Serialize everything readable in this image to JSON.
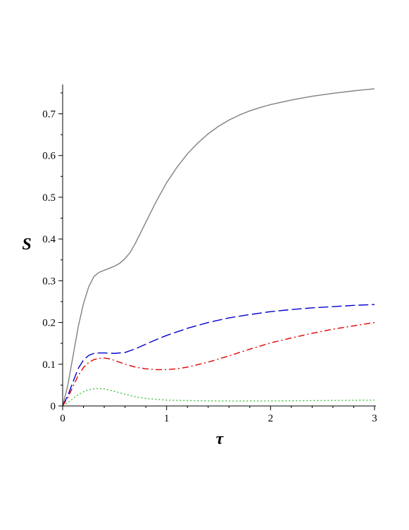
{
  "chart_data": {
    "type": "line",
    "title": "",
    "xlabel": "τ",
    "ylabel": "S",
    "xlim": [
      0,
      3
    ],
    "ylim": [
      0,
      0.77
    ],
    "grid": false,
    "legend": "none",
    "x_ticks": [
      {
        "value": 0,
        "label": "0"
      },
      {
        "value": 1,
        "label": "1"
      },
      {
        "value": 2,
        "label": "2"
      },
      {
        "value": 3,
        "label": "3"
      }
    ],
    "y_ticks": [
      {
        "value": 0,
        "label": "0"
      },
      {
        "value": 0.1,
        "label": "0.1"
      },
      {
        "value": 0.2,
        "label": "0.2"
      },
      {
        "value": 0.3,
        "label": "0.3"
      },
      {
        "value": 0.4,
        "label": "0.4"
      },
      {
        "value": 0.5,
        "label": "0.5"
      },
      {
        "value": 0.6,
        "label": "0.6"
      },
      {
        "value": 0.7,
        "label": "0.7"
      }
    ],
    "series": [
      {
        "color": "#808080",
        "style": "solid",
        "x": [
          0,
          0.05,
          0.1,
          0.15,
          0.2,
          0.25,
          0.3,
          0.35,
          0.4,
          0.45,
          0.5,
          0.55,
          0.6,
          0.65,
          0.7,
          0.8,
          0.9,
          1.0,
          1.1,
          1.2,
          1.3,
          1.4,
          1.5,
          1.6,
          1.7,
          1.8,
          1.9,
          2.0,
          2.2,
          2.4,
          2.6,
          2.8,
          3.0
        ],
        "y": [
          0,
          0.05,
          0.12,
          0.19,
          0.245,
          0.285,
          0.31,
          0.32,
          0.325,
          0.33,
          0.335,
          0.342,
          0.353,
          0.368,
          0.39,
          0.44,
          0.49,
          0.535,
          0.572,
          0.604,
          0.63,
          0.652,
          0.67,
          0.685,
          0.697,
          0.707,
          0.715,
          0.722,
          0.733,
          0.742,
          0.749,
          0.755,
          0.76
        ]
      },
      {
        "color": "#0000d0",
        "style": "longdash",
        "x": [
          0,
          0.05,
          0.1,
          0.15,
          0.2,
          0.25,
          0.3,
          0.35,
          0.4,
          0.5,
          0.6,
          0.7,
          0.8,
          0.9,
          1.0,
          1.2,
          1.4,
          1.6,
          1.8,
          2.0,
          2.2,
          2.4,
          2.6,
          2.8,
          3.0
        ],
        "y": [
          0,
          0.025,
          0.058,
          0.09,
          0.11,
          0.121,
          0.126,
          0.127,
          0.127,
          0.126,
          0.128,
          0.137,
          0.148,
          0.159,
          0.169,
          0.186,
          0.2,
          0.211,
          0.219,
          0.226,
          0.231,
          0.235,
          0.238,
          0.241,
          0.243
        ]
      },
      {
        "color": "#e00000",
        "style": "dashdot",
        "x": [
          0,
          0.05,
          0.1,
          0.15,
          0.2,
          0.25,
          0.3,
          0.35,
          0.4,
          0.45,
          0.5,
          0.6,
          0.7,
          0.8,
          0.9,
          1.0,
          1.1,
          1.2,
          1.4,
          1.6,
          1.8,
          2.0,
          2.2,
          2.4,
          2.6,
          2.8,
          3.0
        ],
        "y": [
          0,
          0.02,
          0.047,
          0.073,
          0.092,
          0.104,
          0.111,
          0.114,
          0.115,
          0.113,
          0.109,
          0.1,
          0.093,
          0.089,
          0.087,
          0.087,
          0.089,
          0.093,
          0.105,
          0.12,
          0.136,
          0.151,
          0.163,
          0.174,
          0.184,
          0.192,
          0.2
        ]
      },
      {
        "color": "#40c040",
        "style": "dotted",
        "x": [
          0,
          0.05,
          0.1,
          0.15,
          0.2,
          0.25,
          0.3,
          0.35,
          0.4,
          0.45,
          0.5,
          0.6,
          0.7,
          0.8,
          0.9,
          1.0,
          1.2,
          1.5,
          2.0,
          2.5,
          3.0
        ],
        "y": [
          0,
          0.008,
          0.018,
          0.027,
          0.034,
          0.039,
          0.041,
          0.042,
          0.041,
          0.038,
          0.035,
          0.028,
          0.022,
          0.018,
          0.016,
          0.014,
          0.013,
          0.012,
          0.012,
          0.013,
          0.014
        ]
      }
    ]
  }
}
